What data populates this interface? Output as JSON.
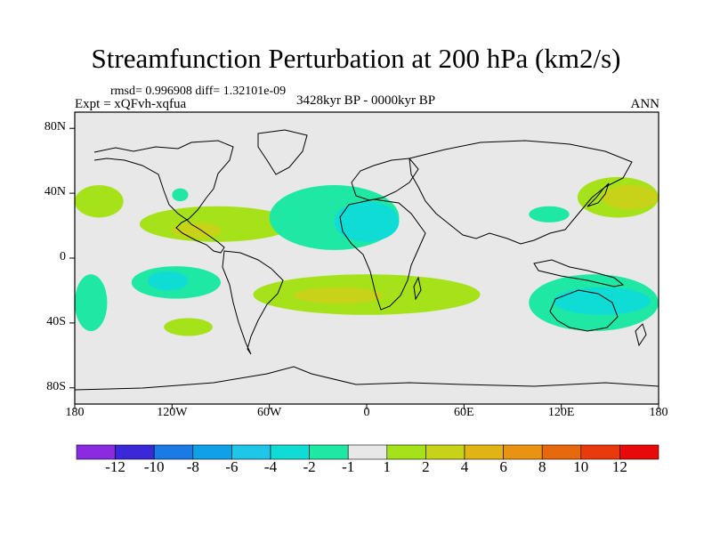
{
  "chart_data": {
    "type": "heatmap",
    "title": "Streamfunction Perturbation at 200 hPa (km2/s)",
    "stats_text": "rmsd= 0.996908 diff= 1.32101e-09",
    "experiment": "Expt = xQFvh-xqfua",
    "period": "3428kyr BP - 0000kyr BP",
    "season": "ANN",
    "x_axis": {
      "range": [
        -180,
        180
      ],
      "ticks": [
        -180,
        -120,
        -60,
        0,
        60,
        120,
        180
      ],
      "tick_labels": [
        "180",
        "120W",
        "60W",
        "0",
        "60E",
        "120E",
        "180"
      ]
    },
    "y_axis": {
      "range": [
        -90,
        90
      ],
      "ticks": [
        80,
        40,
        0,
        -40,
        -80
      ],
      "tick_labels": [
        "80N",
        "40N",
        "0",
        "40S",
        "80S"
      ]
    },
    "colorbar": {
      "boundaries": [
        "-12",
        "-10",
        "-8",
        "-6",
        "-4",
        "-2",
        "-1",
        "1",
        "2",
        "4",
        "6",
        "8",
        "10",
        "12"
      ],
      "colors": [
        "#8a2be2",
        "#3b28d8",
        "#1a7ae6",
        "#0fa0e8",
        "#1ec6e8",
        "#10dcd6",
        "#1fe8a4",
        "#e8e8e8",
        "#a6e21a",
        "#c8d218",
        "#e0b414",
        "#e89412",
        "#e8680e",
        "#e83a0c",
        "#e80a0a"
      ]
    },
    "anomaly_regions": [
      {
        "level": "1 to 2",
        "color": "#a6e21a",
        "lon_range": [
          -180,
          -150
        ],
        "lat_range": [
          25,
          45
        ]
      },
      {
        "level": "1 to 2",
        "color": "#a6e21a",
        "lon_range": [
          -140,
          -45
        ],
        "lat_range": [
          10,
          32
        ]
      },
      {
        "level": "2 to 4",
        "color": "#c8d218",
        "lon_range": [
          -120,
          -90
        ],
        "lat_range": [
          12,
          22
        ]
      },
      {
        "level": "-1 to -2",
        "color": "#1fe8a4",
        "lon_range": [
          -120,
          -110
        ],
        "lat_range": [
          35,
          43
        ]
      },
      {
        "level": "-1 to -2",
        "color": "#1fe8a4",
        "lon_range": [
          -60,
          20
        ],
        "lat_range": [
          5,
          45
        ]
      },
      {
        "level": "-2 to -4",
        "color": "#10dcd6",
        "lon_range": [
          -20,
          20
        ],
        "lat_range": [
          10,
          35
        ]
      },
      {
        "level": "-1 to -2",
        "color": "#1fe8a4",
        "lon_range": [
          -145,
          -90
        ],
        "lat_range": [
          -25,
          -5
        ]
      },
      {
        "level": "-2 to -4",
        "color": "#10dcd6",
        "lon_range": [
          -135,
          -110
        ],
        "lat_range": [
          -20,
          -8
        ]
      },
      {
        "level": "-1 to -2",
        "color": "#1fe8a4",
        "lon_range": [
          -180,
          -160
        ],
        "lat_range": [
          -45,
          -10
        ]
      },
      {
        "level": "1 to 2",
        "color": "#a6e21a",
        "lon_range": [
          -125,
          -95
        ],
        "lat_range": [
          -48,
          -37
        ]
      },
      {
        "level": "1 to 2",
        "color": "#a6e21a",
        "lon_range": [
          -70,
          70
        ],
        "lat_range": [
          -35,
          -10
        ]
      },
      {
        "level": "2 to 4",
        "color": "#c8d218",
        "lon_range": [
          -45,
          10
        ],
        "lat_range": [
          -28,
          -18
        ]
      },
      {
        "level": "-1 to -2",
        "color": "#1fe8a4",
        "lon_range": [
          100,
          180
        ],
        "lat_range": [
          -45,
          -10
        ]
      },
      {
        "level": "-2 to -4",
        "color": "#10dcd6",
        "lon_range": [
          115,
          175
        ],
        "lat_range": [
          -35,
          -18
        ]
      },
      {
        "level": "-1 to -2",
        "color": "#1fe8a4",
        "lon_range": [
          100,
          125
        ],
        "lat_range": [
          22,
          32
        ]
      },
      {
        "level": "1 to 2",
        "color": "#a6e21a",
        "lon_range": [
          130,
          180
        ],
        "lat_range": [
          25,
          50
        ]
      },
      {
        "level": "2 to 4",
        "color": "#c8d218",
        "lon_range": [
          145,
          180
        ],
        "lat_range": [
          30,
          45
        ]
      }
    ]
  }
}
